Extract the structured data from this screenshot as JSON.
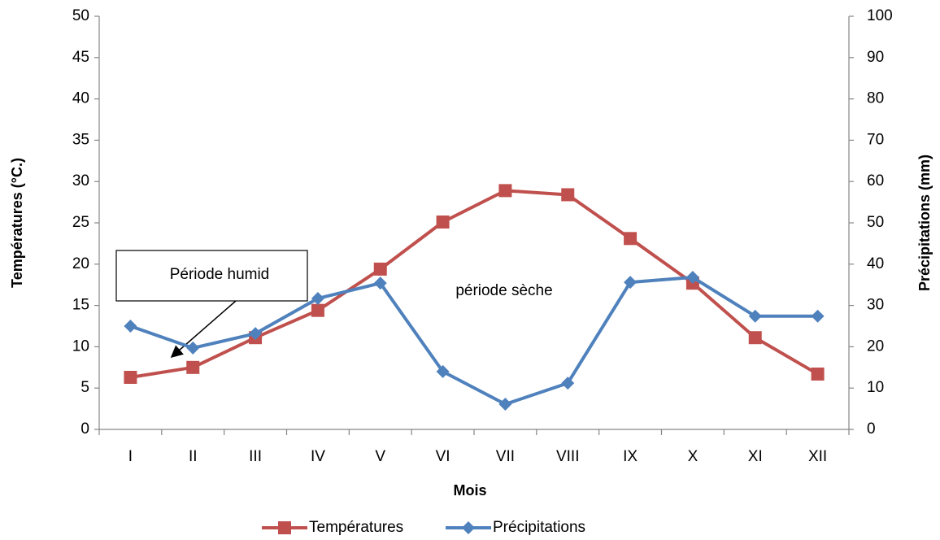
{
  "chart_data": {
    "type": "line",
    "categories": [
      "I",
      "II",
      "III",
      "IV",
      "V",
      "VI",
      "VII",
      "VIII",
      "IX",
      "X",
      "XI",
      "XII"
    ],
    "x_label": "Mois",
    "y_label": "Températures  (°C.)",
    "y2_label": "Précipitations  (mm)",
    "ylim": [
      0,
      50
    ],
    "yticks": [
      0,
      5,
      10,
      15,
      20,
      25,
      30,
      35,
      40,
      45,
      50
    ],
    "y2lim": [
      0,
      100
    ],
    "y2ticks": [
      0,
      10,
      20,
      30,
      40,
      50,
      60,
      70,
      80,
      90,
      100
    ],
    "grid": false,
    "legend": "bottom",
    "series": [
      {
        "name": "Températures",
        "color": "#c0504d",
        "marker": "square",
        "values": [
          6.3,
          7.5,
          11.1,
          14.4,
          19.4,
          25.1,
          28.9,
          28.4,
          23.1,
          17.7,
          11.1,
          6.7
        ]
      },
      {
        "name": "Précipitations",
        "color": "#4f81bd",
        "marker": "diamond",
        "axis": "y2",
        "values": [
          25,
          19.7,
          23.2,
          31.7,
          35.4,
          14,
          6.1,
          11.2,
          35.6,
          36.8,
          27.4,
          27.4
        ]
      }
    ],
    "annotations": [
      "Période humid",
      "période sèche"
    ]
  }
}
